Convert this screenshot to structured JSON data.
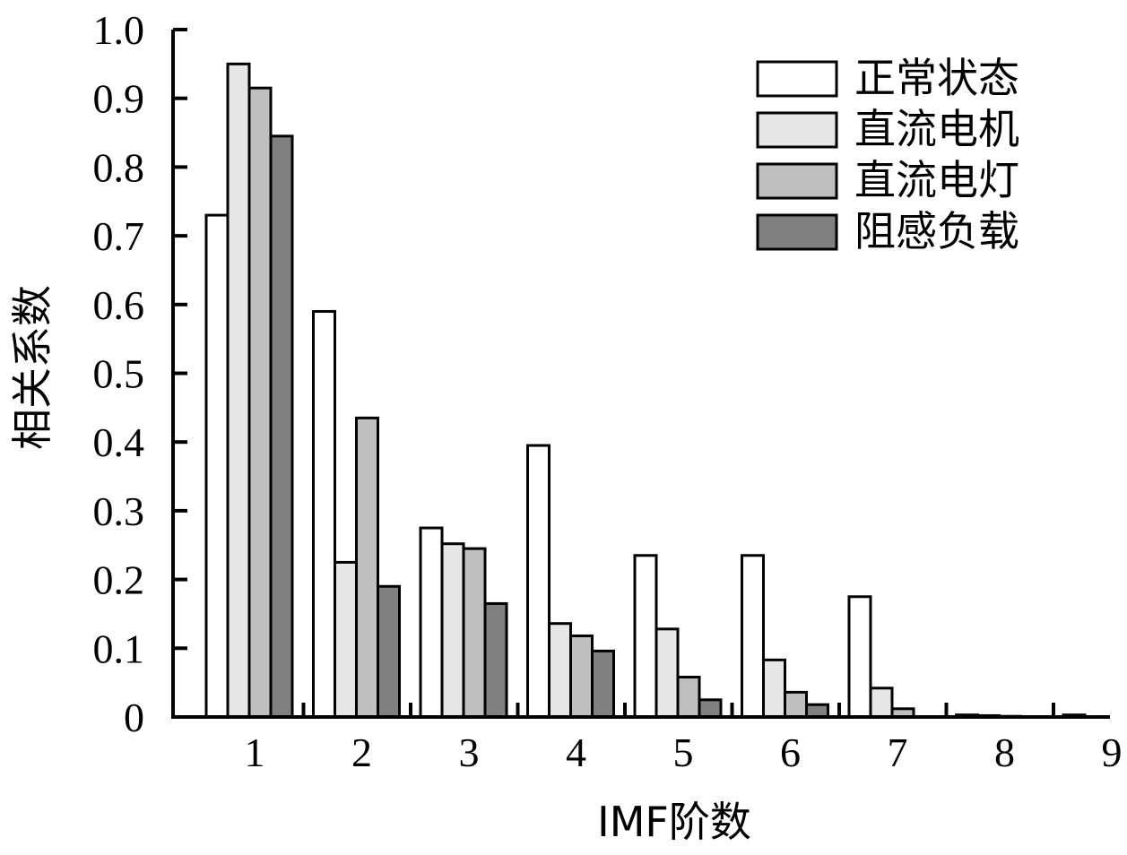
{
  "chart_data": {
    "type": "bar",
    "title": "",
    "xlabel": "IMF阶数",
    "ylabel": "相关系数",
    "categories": [
      "1",
      "2",
      "3",
      "4",
      "5",
      "6",
      "7",
      "8",
      "9"
    ],
    "ylim": [
      0,
      1.0
    ],
    "yticks": [
      "0",
      "0.1",
      "0.2",
      "0.3",
      "0.4",
      "0.5",
      "0.6",
      "0.7",
      "0.8",
      "0.9",
      "1.0"
    ],
    "grid": false,
    "legend_position": "top-right",
    "series": [
      {
        "name": "正常状态",
        "color": "#ffffff",
        "values": [
          0.73,
          0.59,
          0.275,
          0.395,
          0.235,
          0.235,
          0.175,
          0.003,
          0.003
        ]
      },
      {
        "name": "直流电机",
        "color": "#e6e6e6",
        "values": [
          0.95,
          0.225,
          0.252,
          0.136,
          0.128,
          0.083,
          0.042,
          0.002,
          0.0
        ]
      },
      {
        "name": "直流电灯",
        "color": "#bfbfbf",
        "values": [
          0.915,
          0.435,
          0.245,
          0.118,
          0.058,
          0.036,
          0.012,
          0.001,
          0.0
        ]
      },
      {
        "name": "阻感负载",
        "color": "#808080",
        "values": [
          0.845,
          0.19,
          0.165,
          0.096,
          0.025,
          0.018,
          0.0,
          0.0,
          0.0
        ]
      }
    ]
  }
}
